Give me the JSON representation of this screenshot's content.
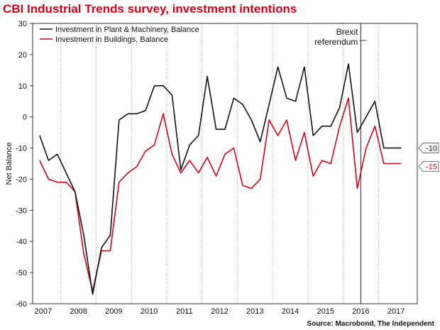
{
  "header": {
    "title": "CBI Industrial Trends survey, investment intentions"
  },
  "footer": {
    "source": "Source: Macrobond, The Independent"
  },
  "chart_data": {
    "type": "line",
    "title": "CBI Industrial Trends survey, investment intentions",
    "xlabel": "",
    "ylabel": "Net Balance",
    "ylim": [
      -60,
      30
    ],
    "yticks": [
      30,
      20,
      10,
      0,
      -10,
      -20,
      -30,
      -40,
      -50,
      -60
    ],
    "xlim": [
      2007,
      2017.5
    ],
    "xtick_labels": [
      "2007",
      "2008",
      "2009",
      "2010",
      "2011",
      "2012",
      "2013",
      "2014",
      "2015",
      "2016",
      "2017"
    ],
    "legend": "top-left",
    "grid": "vertical dotted",
    "x": [
      2006.9,
      2007.15,
      2007.4,
      2007.65,
      2007.9,
      2008.15,
      2008.4,
      2008.65,
      2008.9,
      2009.15,
      2009.4,
      2009.65,
      2009.9,
      2010.15,
      2010.4,
      2010.65,
      2010.9,
      2011.15,
      2011.4,
      2011.65,
      2011.9,
      2012.15,
      2012.4,
      2012.65,
      2012.9,
      2013.15,
      2013.4,
      2013.65,
      2013.9,
      2014.15,
      2014.4,
      2014.65,
      2014.9,
      2015.15,
      2015.4,
      2015.65,
      2015.9,
      2016.15,
      2016.4,
      2016.65,
      2016.9,
      2017.15
    ],
    "series": [
      {
        "name": "Investment in Plant & Machinery, Balance",
        "color": "#111111",
        "values": [
          -6,
          -14,
          -12,
          -18,
          -24,
          -38,
          -57,
          -42,
          -38,
          -1,
          1,
          1,
          2,
          10,
          10,
          7,
          -17,
          -9,
          -6,
          13,
          -4,
          -4,
          6,
          4,
          -1,
          -8,
          4,
          16,
          6,
          5,
          16,
          -6,
          -3,
          -3,
          3,
          17,
          -5,
          0,
          5,
          -10,
          -10,
          -10
        ],
        "end_label": "-10"
      },
      {
        "name": "Investment in Buildings, Balance",
        "color": "#d0021b",
        "values": [
          -14,
          -20,
          -21,
          -21,
          -24,
          -44,
          -56,
          -43,
          -43,
          -21,
          -18,
          -16,
          -11,
          -9,
          1,
          -12,
          -18,
          -14,
          -18,
          -13,
          -19,
          -12,
          -10,
          -22,
          -23,
          -20,
          -1,
          -6,
          -1,
          -14,
          -5,
          -19,
          -14,
          -15,
          -3,
          6,
          -23,
          -10,
          -3,
          -15,
          -15,
          -15
        ],
        "end_label": "-15"
      }
    ],
    "annotations": [
      {
        "text_lines": [
          "Brexit",
          "referendum"
        ],
        "x": 2016.0
      }
    ]
  }
}
